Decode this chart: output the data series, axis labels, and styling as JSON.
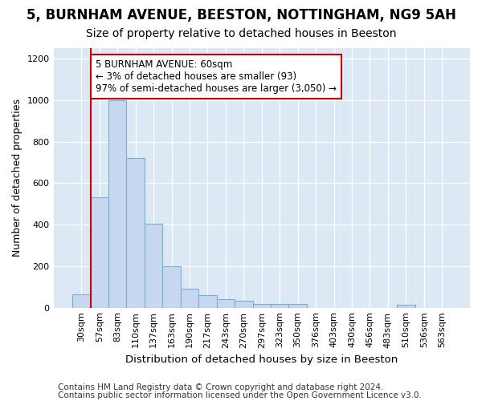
{
  "title1": "5, BURNHAM AVENUE, BEESTON, NOTTINGHAM, NG9 5AH",
  "title2": "Size of property relative to detached houses in Beeston",
  "xlabel": "Distribution of detached houses by size in Beeston",
  "ylabel": "Number of detached properties",
  "categories": [
    "30sqm",
    "57sqm",
    "83sqm",
    "110sqm",
    "137sqm",
    "163sqm",
    "190sqm",
    "217sqm",
    "243sqm",
    "270sqm",
    "297sqm",
    "323sqm",
    "350sqm",
    "376sqm",
    "403sqm",
    "430sqm",
    "456sqm",
    "483sqm",
    "510sqm",
    "536sqm",
    "563sqm"
  ],
  "values": [
    65,
    530,
    1000,
    720,
    405,
    198,
    90,
    60,
    40,
    32,
    20,
    20,
    20,
    0,
    0,
    0,
    0,
    0,
    13,
    0,
    0
  ],
  "bar_color": "#c5d8ef",
  "bar_edge_color": "#7aafd4",
  "vline_color": "#cc0000",
  "vline_position": 0.5,
  "annotation_line1": "5 BURNHAM AVENUE: 60sqm",
  "annotation_line2": "← 3% of detached houses are smaller (93)",
  "annotation_line3": "97% of semi-detached houses are larger (3,050) →",
  "annotation_box_facecolor": "#ffffff",
  "annotation_box_edgecolor": "#cc0000",
  "ylim_max": 1250,
  "yticks": [
    0,
    200,
    400,
    600,
    800,
    1000,
    1200
  ],
  "footer1": "Contains HM Land Registry data © Crown copyright and database right 2024.",
  "footer2": "Contains public sector information licensed under the Open Government Licence v3.0.",
  "fig_bg_color": "#ffffff",
  "plot_bg_color": "#dce9f5",
  "grid_color": "#ffffff",
  "title1_fontsize": 12,
  "title2_fontsize": 10,
  "ylabel_fontsize": 9,
  "xlabel_fontsize": 9.5,
  "tick_fontsize": 8,
  "annot_fontsize": 8.5,
  "footer_fontsize": 7.5
}
